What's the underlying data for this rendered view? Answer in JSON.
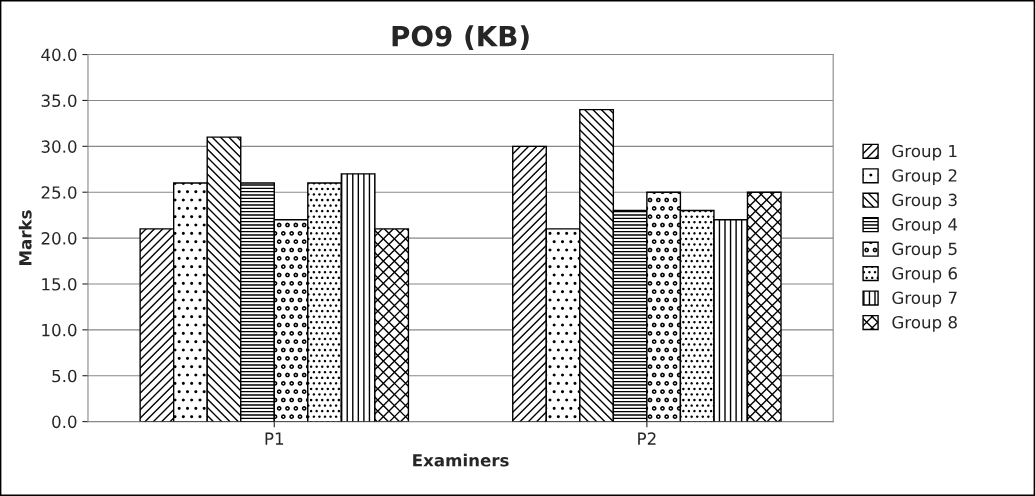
{
  "chart_data": {
    "type": "bar",
    "title": "PO9 (KB)",
    "xlabel": "Examiners",
    "ylabel": "Marks",
    "categories": [
      "P1",
      "P2"
    ],
    "series": [
      {
        "name": "Group 1",
        "color": "#000000",
        "values": [
          21,
          30
        ]
      },
      {
        "name": "Group 2",
        "color": "#000000",
        "values": [
          26,
          21
        ]
      },
      {
        "name": "Group 3",
        "color": "#000000",
        "values": [
          31,
          34
        ]
      },
      {
        "name": "Group 4",
        "color": "#000000",
        "values": [
          26,
          23
        ]
      },
      {
        "name": "Group 5",
        "color": "#000000",
        "values": [
          22,
          25
        ]
      },
      {
        "name": "Group 6",
        "color": "#000000",
        "values": [
          26,
          23
        ]
      },
      {
        "name": "Group 7",
        "color": "#000000",
        "values": [
          27,
          22
        ]
      },
      {
        "name": "Group 8",
        "color": "#000000",
        "values": [
          21,
          25
        ]
      }
    ],
    "ylim": [
      0,
      40
    ],
    "yticks": [
      {
        "value": 0,
        "label": "0.0"
      },
      {
        "value": 5,
        "label": "5.0"
      },
      {
        "value": 10,
        "label": "10.0"
      },
      {
        "value": 15,
        "label": "15.0"
      },
      {
        "value": 20,
        "label": "20.0"
      },
      {
        "value": 25,
        "label": "25.0"
      },
      {
        "value": 30,
        "label": "30.0"
      },
      {
        "value": 35,
        "label": "35.0"
      },
      {
        "value": 40,
        "label": "40.0"
      }
    ],
    "grid": "y",
    "legend": "right"
  }
}
